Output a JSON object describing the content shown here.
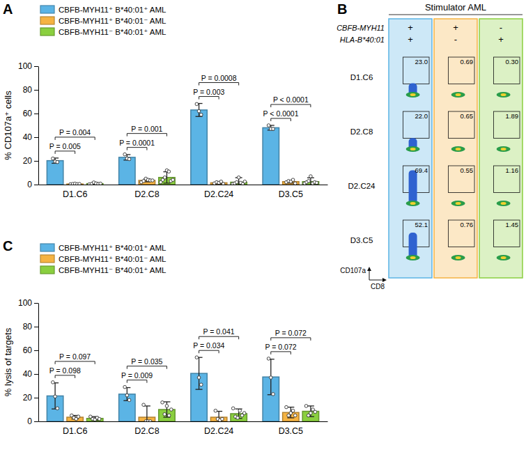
{
  "chart_data": [
    {
      "type": "bar",
      "panel": "A",
      "ylabel": "% CD107a⁺ cells",
      "categories": [
        "D1.C6",
        "D2.C8",
        "D2.C24",
        "D3.C5"
      ],
      "ylim": [
        0,
        100
      ],
      "yticks": [
        0,
        20,
        40,
        60,
        80,
        100
      ],
      "legend": "top-left",
      "series": [
        {
          "name": "CBFB-MYH11⁺ B*40:01⁺ AML",
          "color": "#5bb4e5",
          "values": [
            20.2,
            23.0,
            63.0,
            48.0
          ],
          "errors": [
            2.2,
            2.3,
            5.5,
            2.0
          ],
          "points": [
            [
              22,
              19.5,
              19
            ],
            [
              25.5,
              22,
              21.5
            ],
            [
              68,
              62,
              59
            ],
            [
              50,
              47,
              47
            ]
          ]
        },
        {
          "name": "CBFB-MYH11⁺ B*40:01⁻ AML",
          "color": "#f5b342",
          "values": [
            0.5,
            3.5,
            1.5,
            2.5
          ],
          "errors": [
            0.3,
            1.2,
            0.8,
            1.2
          ],
          "points": [
            [
              0.3,
              0.5,
              0.8,
              0.4,
              0.5
            ],
            [
              2,
              3,
              5,
              4,
              3.5,
              3.5
            ],
            [
              1,
              2,
              1.5,
              2.5,
              0.5
            ],
            [
              2,
              3,
              2.5,
              4,
              1
            ]
          ]
        },
        {
          "name": "CBFB-MYH11⁻ B*40:01⁺ AML",
          "color": "#8acf3f",
          "values": [
            0.8,
            6.0,
            2.0,
            2.5
          ],
          "errors": [
            0.8,
            4.8,
            3.8,
            3.2
          ],
          "points": [
            [
              0.2,
              0.5,
              1.8,
              1,
              0.5,
              0.8
            ],
            [
              2,
              4,
              6,
              12,
              11,
              3,
              4
            ],
            [
              0.5,
              1,
              2,
              6,
              1.5,
              0.5,
              2.5
            ],
            [
              1,
              2,
              3,
              7,
              1,
              2,
              1.5
            ]
          ]
        }
      ],
      "annotations": [
        {
          "category": 0,
          "series": [
            0,
            1
          ],
          "text": "P = 0.005"
        },
        {
          "category": 0,
          "series": [
            0,
            2
          ],
          "text": "P = 0.004"
        },
        {
          "category": 1,
          "series": [
            0,
            1
          ],
          "text": "P = 0.0001"
        },
        {
          "category": 1,
          "series": [
            0,
            2
          ],
          "text": "P = 0.001"
        },
        {
          "category": 2,
          "series": [
            0,
            1
          ],
          "text": "P = 0.003"
        },
        {
          "category": 2,
          "series": [
            0,
            2
          ],
          "text": "P = 0.0008"
        },
        {
          "category": 3,
          "series": [
            0,
            1
          ],
          "text": "P < 0.0001"
        },
        {
          "category": 3,
          "series": [
            0,
            2
          ],
          "text": "P < 0.0001"
        }
      ]
    },
    {
      "type": "flow_grid",
      "panel": "B",
      "title": "Stimulator AML",
      "row_labels": [
        "CBFB-MYH11",
        "HLA-B*40:01"
      ],
      "columns": [
        {
          "signs": [
            "+",
            "+"
          ],
          "color": "#5bb4e5"
        },
        {
          "signs": [
            "+",
            "-"
          ],
          "color": "#f5b342"
        },
        {
          "signs": [
            "-",
            "+"
          ],
          "color": "#8acf3f"
        }
      ],
      "categories": [
        "D1.C6",
        "D2.C8",
        "D2.C24",
        "D3.C5"
      ],
      "values": [
        [
          23.0,
          0.69,
          0.3
        ],
        [
          22.0,
          0.65,
          1.89
        ],
        [
          69.4,
          0.55,
          1.16
        ],
        [
          52.1,
          0.76,
          1.45
        ]
      ],
      "value_labels": [
        [
          "23.0",
          "0.69",
          "0.30"
        ],
        [
          "22.0",
          "0.65",
          "1.89"
        ],
        [
          "69.4",
          "0.55",
          "1.16"
        ],
        [
          "52.1",
          "0.76",
          "1.45"
        ]
      ],
      "xlabel": "CD8",
      "ylabel": "CD107a"
    },
    {
      "type": "bar",
      "panel": "C",
      "ylabel": "% lysis of targets",
      "categories": [
        "D1.C6",
        "D2.C8",
        "D2.C24",
        "D3.C5"
      ],
      "ylim": [
        0,
        100
      ],
      "yticks": [
        0,
        20,
        40,
        60,
        80,
        100
      ],
      "legend": "top-left",
      "series": [
        {
          "name": "CBFB-MYH11⁺ B*40:01⁺ AML",
          "color": "#5bb4e5",
          "values": [
            21.5,
            23.0,
            40.5,
            37.5
          ],
          "errors": [
            11.0,
            5.5,
            13.5,
            15.0
          ],
          "points": [
            [
              33,
              21,
              11
            ],
            [
              29,
              22,
              18
            ],
            [
              54,
              37,
              31
            ],
            [
              53,
              37,
              23
            ]
          ]
        },
        {
          "name": "CBFB-MYH11⁺ B*40:01⁻ AML",
          "color": "#f5b342",
          "values": [
            3.5,
            3.5,
            3.5,
            7.5
          ],
          "errors": [
            1.5,
            9.5,
            5.0,
            4.5
          ],
          "points": [
            [
              5,
              3,
              2,
              4
            ],
            [
              14,
              0,
              0,
              0
            ],
            [
              9,
              2,
              1,
              2
            ],
            [
              12,
              5,
              7,
              9,
              5
            ]
          ]
        },
        {
          "name": "CBFB-MYH11⁻ B*40:01⁺ AML",
          "color": "#8acf3f",
          "values": [
            2.5,
            10.0,
            6.5,
            8.5
          ],
          "errors": [
            1.5,
            6.5,
            4.0,
            4.5
          ],
          "points": [
            [
              4,
              2,
              1.5,
              3,
              2
            ],
            [
              16,
              6,
              13,
              5,
              10
            ],
            [
              11,
              4,
              3,
              9,
              5,
              7
            ],
            [
              13,
              5,
              7,
              10,
              8
            ]
          ]
        }
      ],
      "annotations": [
        {
          "category": 0,
          "series": [
            0,
            1
          ],
          "text": "P = 0.098"
        },
        {
          "category": 0,
          "series": [
            0,
            2
          ],
          "text": "P = 0.097"
        },
        {
          "category": 1,
          "series": [
            0,
            1
          ],
          "text": "P = 0.009"
        },
        {
          "category": 1,
          "series": [
            0,
            2
          ],
          "text": "P = 0.035"
        },
        {
          "category": 2,
          "series": [
            0,
            1
          ],
          "text": "P = 0.034"
        },
        {
          "category": 2,
          "series": [
            0,
            2
          ],
          "text": "P = 0.041"
        },
        {
          "category": 3,
          "series": [
            0,
            1
          ],
          "text": "P = 0.072"
        },
        {
          "category": 3,
          "series": [
            0,
            2
          ],
          "text": "P = 0.072"
        }
      ]
    }
  ]
}
